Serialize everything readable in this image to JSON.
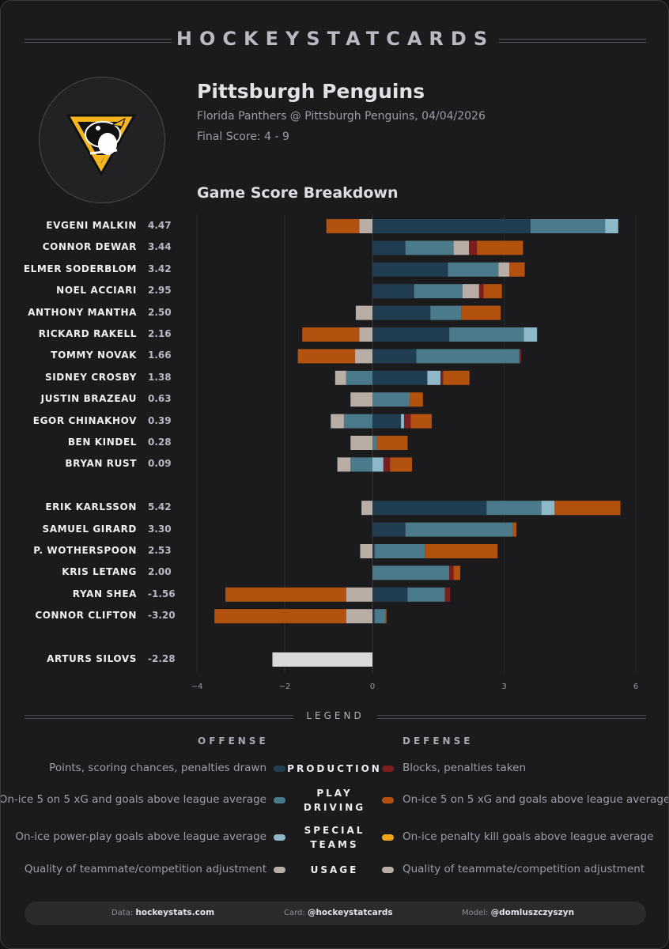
{
  "brand": "HOCKEYSTATCARDS",
  "team": {
    "name": "Pittsburgh Penguins",
    "matchup": "Florida Panthers @ Pittsburgh Penguins, 04/04/2026",
    "final_score": "Final Score: 4 - 9"
  },
  "chart_data": {
    "type": "bar",
    "title": "Game Score Breakdown",
    "orientation": "horizontal",
    "stacking": "diverging",
    "xlim": [
      -4.3,
      6.1
    ],
    "x_ticks": [
      -4,
      -2,
      0,
      3,
      6
    ],
    "x_tick_labels": [
      "−4",
      "−2",
      "0",
      "3",
      "6"
    ],
    "components": [
      "off_production",
      "off_play_driving",
      "off_special_teams",
      "off_usage",
      "def_blocks_penalties",
      "def_play_driving",
      "def_penalty_kill",
      "def_usage"
    ],
    "colors": {
      "off_production": "#213d52",
      "off_play_driving": "#4b7a8a",
      "off_special_teams": "#8db8c8",
      "usage": "#b8aea5",
      "def_blocks_penalties": "#7a1e1e",
      "def_play_driving": "#b3520f",
      "def_penalty_kill": "#f2a516",
      "goalie": "#d9d9db"
    },
    "groups": [
      {
        "name": "forwards",
        "players": [
          {
            "name": "EVGENI MALKIN",
            "score": "4.47",
            "segments": [
              {
                "c": "off_production",
                "v": 3.6
              },
              {
                "c": "off_play_driving",
                "v": 1.7
              },
              {
                "c": "off_special_teams",
                "v": 0.3
              },
              {
                "c": "usage",
                "v": -0.3
              },
              {
                "c": "def_play_driving",
                "v": -0.75
              }
            ]
          },
          {
            "name": "CONNOR DEWAR",
            "score": "3.44",
            "segments": [
              {
                "c": "off_production",
                "v": 0.75
              },
              {
                "c": "off_play_driving",
                "v": 1.1
              },
              {
                "c": "usage",
                "v": 0.35
              },
              {
                "c": "def_blocks_penalties",
                "v": 0.18
              },
              {
                "c": "def_play_driving",
                "v": 1.05
              }
            ]
          },
          {
            "name": "ELMER SODERBLOM",
            "score": "3.42",
            "segments": [
              {
                "c": "off_production",
                "v": 1.72
              },
              {
                "c": "off_play_driving",
                "v": 1.15
              },
              {
                "c": "usage",
                "v": 0.25
              },
              {
                "c": "def_play_driving",
                "v": 0.35
              }
            ]
          },
          {
            "name": "NOEL ACCIARI",
            "score": "2.95",
            "segments": [
              {
                "c": "off_production",
                "v": 0.95
              },
              {
                "c": "off_play_driving",
                "v": 1.1
              },
              {
                "c": "usage",
                "v": 0.38
              },
              {
                "c": "def_blocks_penalties",
                "v": 0.1
              },
              {
                "c": "def_play_driving",
                "v": 0.42
              }
            ]
          },
          {
            "name": "ANTHONY MANTHA",
            "score": "2.50",
            "segments": [
              {
                "c": "off_production",
                "v": 1.32
              },
              {
                "c": "off_play_driving",
                "v": 0.7
              },
              {
                "c": "usage",
                "v": -0.38
              },
              {
                "c": "def_play_driving",
                "v": 0.9
              }
            ]
          },
          {
            "name": "RICKARD RAKELL",
            "score": "2.16",
            "segments": [
              {
                "c": "off_production",
                "v": 1.75
              },
              {
                "c": "off_play_driving",
                "v": 1.7
              },
              {
                "c": "off_special_teams",
                "v": 0.3
              },
              {
                "c": "usage",
                "v": -0.3
              },
              {
                "c": "def_play_driving",
                "v": -1.3
              }
            ]
          },
          {
            "name": "TOMMY NOVAK",
            "score": "1.66",
            "segments": [
              {
                "c": "off_production",
                "v": 1.0
              },
              {
                "c": "off_play_driving",
                "v": 2.35
              },
              {
                "c": "def_blocks_penalties",
                "v": 0.04
              },
              {
                "c": "usage",
                "v": -0.4
              },
              {
                "c": "def_play_driving",
                "v": -1.3
              }
            ]
          },
          {
            "name": "SIDNEY CROSBY",
            "score": "1.38",
            "segments": [
              {
                "c": "off_production",
                "v": 1.25
              },
              {
                "c": "off_special_teams",
                "v": 0.3
              },
              {
                "c": "def_blocks_penalties",
                "v": 0.06
              },
              {
                "c": "def_play_driving",
                "v": 0.6
              },
              {
                "c": "off_play_driving",
                "v": -0.6
              },
              {
                "c": "usage",
                "v": -0.25
              }
            ]
          },
          {
            "name": "JUSTIN BRAZEAU",
            "score": "0.63",
            "segments": [
              {
                "c": "off_play_driving",
                "v": 0.85
              },
              {
                "c": "def_play_driving",
                "v": 0.3
              },
              {
                "c": "usage",
                "v": -0.5
              }
            ]
          },
          {
            "name": "EGOR CHINAKHOV",
            "score": "0.39",
            "segments": [
              {
                "c": "off_production",
                "v": 0.65
              },
              {
                "c": "off_special_teams",
                "v": 0.07
              },
              {
                "c": "def_blocks_penalties",
                "v": 0.15
              },
              {
                "c": "def_play_driving",
                "v": 0.48
              },
              {
                "c": "off_play_driving",
                "v": -0.65
              },
              {
                "c": "usage",
                "v": -0.3
              }
            ]
          },
          {
            "name": "BEN KINDEL",
            "score": "0.28",
            "segments": [
              {
                "c": "off_play_driving",
                "v": 0.1
              },
              {
                "c": "def_play_driving",
                "v": 0.7
              },
              {
                "c": "usage",
                "v": -0.5
              }
            ]
          },
          {
            "name": "BRYAN RUST",
            "score": "0.09",
            "segments": [
              {
                "c": "off_special_teams",
                "v": 0.25
              },
              {
                "c": "def_blocks_penalties",
                "v": 0.15
              },
              {
                "c": "def_play_driving",
                "v": 0.5
              },
              {
                "c": "off_play_driving",
                "v": -0.5
              },
              {
                "c": "usage",
                "v": -0.3
              }
            ]
          }
        ]
      },
      {
        "name": "defense",
        "players": [
          {
            "name": "ERIK KARLSSON",
            "score": "5.42",
            "segments": [
              {
                "c": "off_production",
                "v": 2.6
              },
              {
                "c": "off_play_driving",
                "v": 1.25
              },
              {
                "c": "off_special_teams",
                "v": 0.3
              },
              {
                "c": "def_play_driving",
                "v": 1.5
              },
              {
                "c": "usage",
                "v": -0.25
              }
            ]
          },
          {
            "name": "SAMUEL GIRARD",
            "score": "3.30",
            "segments": [
              {
                "c": "off_production",
                "v": 0.75
              },
              {
                "c": "off_play_driving",
                "v": 2.45
              },
              {
                "c": "def_play_driving",
                "v": 0.08
              }
            ]
          },
          {
            "name": "P. WOTHERSPOON",
            "score": "2.53",
            "segments": [
              {
                "c": "off_production",
                "v": 0.05
              },
              {
                "c": "off_play_driving",
                "v": 1.15
              },
              {
                "c": "def_play_driving",
                "v": 1.65
              },
              {
                "c": "usage",
                "v": -0.28
              }
            ]
          },
          {
            "name": "KRIS LETANG",
            "score": "2.00",
            "segments": [
              {
                "c": "off_play_driving",
                "v": 1.75
              },
              {
                "c": "def_blocks_penalties",
                "v": 0.1
              },
              {
                "c": "def_play_driving",
                "v": 0.15
              }
            ]
          },
          {
            "name": "RYAN SHEA",
            "score": "-1.56",
            "segments": [
              {
                "c": "off_production",
                "v": 0.8
              },
              {
                "c": "off_play_driving",
                "v": 0.85
              },
              {
                "c": "def_blocks_penalties",
                "v": 0.12
              },
              {
                "c": "usage",
                "v": -0.6
              },
              {
                "c": "def_play_driving",
                "v": -2.75
              }
            ]
          },
          {
            "name": "CONNOR CLIFTON",
            "score": "-3.20",
            "segments": [
              {
                "c": "off_production",
                "v": 0.05
              },
              {
                "c": "off_play_driving",
                "v": 0.25
              },
              {
                "c": "def_play_driving",
                "v": 0.02
              },
              {
                "c": "usage",
                "v": -0.6
              },
              {
                "c": "def_play_driving",
                "v": -3.0
              }
            ]
          }
        ]
      },
      {
        "name": "goalies",
        "players": [
          {
            "name": "ARTURS SILOVS",
            "score": "-2.28",
            "segments": [
              {
                "c": "goalie",
                "v": -2.28
              }
            ]
          }
        ]
      }
    ]
  },
  "legend": {
    "title": "LEGEND",
    "offense_head": "OFFENSE",
    "defense_head": "DEFENSE",
    "rows": [
      {
        "cat_line1": "PRODUCTION",
        "cat_line2": "",
        "off_desc": "Points, scoring chances, penalties drawn",
        "off_color": "#213d52",
        "def_desc": "Blocks, penalties taken",
        "def_color": "#7a1e1e"
      },
      {
        "cat_line1": "PLAY",
        "cat_line2": "DRIVING",
        "off_desc": "On-ice 5 on 5 xG and goals above league average",
        "off_color": "#4b7a8a",
        "def_desc": "On-ice 5 on 5 xG and goals above league average",
        "def_color": "#b3520f"
      },
      {
        "cat_line1": "SPECIAL",
        "cat_line2": "TEAMS",
        "off_desc": "On-ice power-play goals above league average",
        "off_color": "#8db8c8",
        "def_desc": "On-ice penalty kill goals above league average",
        "def_color": "#f2a516"
      },
      {
        "cat_line1": "USAGE",
        "cat_line2": "",
        "off_desc": "Quality of teammate/competition adjustment",
        "off_color": "#b8aea5",
        "def_desc": "Quality of teammate/competition adjustment",
        "def_color": "#b8aea5"
      }
    ]
  },
  "footer": {
    "data_label": "Data:",
    "data_value": "hockeystats.com",
    "card_label": "Card:",
    "card_value": "@hockeystatcards",
    "model_label": "Model:",
    "model_value": "@domluszczyszyn"
  }
}
